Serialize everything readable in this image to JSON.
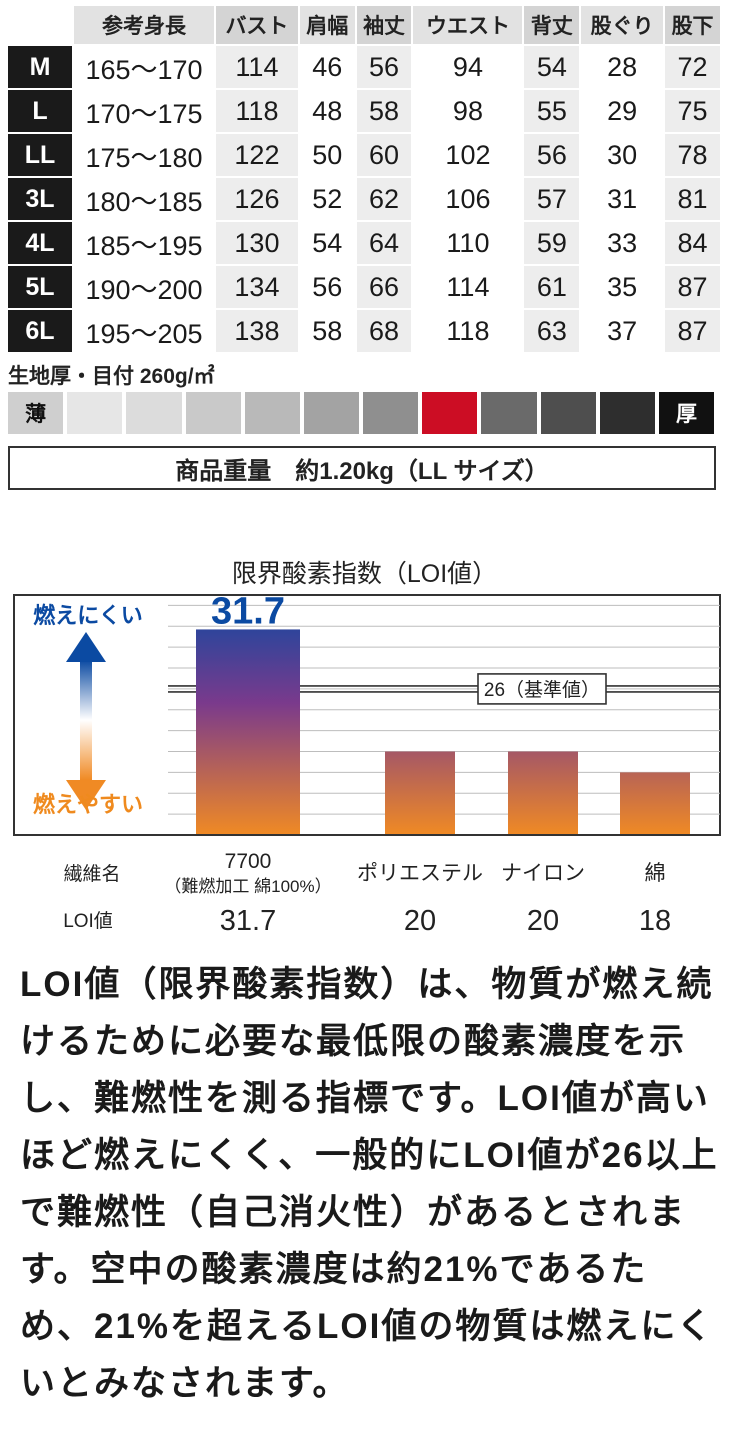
{
  "size_table": {
    "headers": [
      "",
      "参考身長",
      "バスト",
      "肩幅",
      "袖丈",
      "ウエスト",
      "背丈",
      "股ぐり",
      "股下"
    ],
    "rows": [
      {
        "size": "M",
        "values": [
          "165〜170",
          "114",
          "46",
          "56",
          "94",
          "54",
          "28",
          "72"
        ]
      },
      {
        "size": "L",
        "values": [
          "170〜175",
          "118",
          "48",
          "58",
          "98",
          "55",
          "29",
          "75"
        ]
      },
      {
        "size": "LL",
        "values": [
          "175〜180",
          "122",
          "50",
          "60",
          "102",
          "56",
          "30",
          "78"
        ]
      },
      {
        "size": "3L",
        "values": [
          "180〜185",
          "126",
          "52",
          "62",
          "106",
          "57",
          "31",
          "81"
        ]
      },
      {
        "size": "4L",
        "values": [
          "185〜195",
          "130",
          "54",
          "64",
          "110",
          "59",
          "33",
          "84"
        ]
      },
      {
        "size": "5L",
        "values": [
          "190〜200",
          "134",
          "56",
          "66",
          "114",
          "61",
          "35",
          "87"
        ]
      },
      {
        "size": "6L",
        "values": [
          "195〜205",
          "138",
          "58",
          "68",
          "118",
          "63",
          "37",
          "87"
        ]
      }
    ]
  },
  "fabric": {
    "title": "生地厚・目付 260g/㎡",
    "thin_label": "薄",
    "thick_label": "厚",
    "selected_index": 6,
    "scale_colors": [
      "#e6e6e6",
      "#dcdcdc",
      "#c9c9c9",
      "#b9b9b9",
      "#a3a3a3",
      "#8f8f8f",
      "#cc0d24",
      "#6a6a6a",
      "#4e4e4e",
      "#2e2e2e",
      "#151515"
    ]
  },
  "weight": {
    "label": "商品重量　約1.20kg（LL サイズ）"
  },
  "chart_data": {
    "type": "bar",
    "title": "限界酸素指数（LOI値）",
    "categories": [
      "7700",
      "ポリエステル",
      "ナイロン",
      "綿"
    ],
    "category_sub": [
      "（難燃加工 綿100%）",
      "",
      "",
      ""
    ],
    "values": [
      31.7,
      20,
      20,
      18
    ],
    "value_labels": [
      "31.7",
      "20",
      "20",
      "18"
    ],
    "top_data_label": "31.7",
    "reference_line": {
      "value": 26,
      "label": "26（基準値）"
    },
    "row_label_category": "繊維名",
    "row_label_value": "LOI値",
    "annotation_top": "燃えにくい",
    "annotation_bottom": "燃えやすい",
    "ylim": [
      12,
      35
    ],
    "grid": true,
    "colors": {
      "top": "#0b4aa2",
      "mid": "#7a3a8c",
      "bottom": "#f08a24",
      "blue_text": "#0b4aa2",
      "orange_text": "#ef8a1e"
    }
  },
  "description": "LOI値（限界酸素指数）は、物質が燃え続けるために必要な最低限の酸素濃度を示し、難燃性を測る指標です。LOI値が高いほど燃えにくく、一般的にLOI値が26以上で難燃性（自己消火性）があるとされます。空中の酸素濃度は約21%であるため、21%を超えるLOI値の物質は燃えにくいとみなされます。"
}
